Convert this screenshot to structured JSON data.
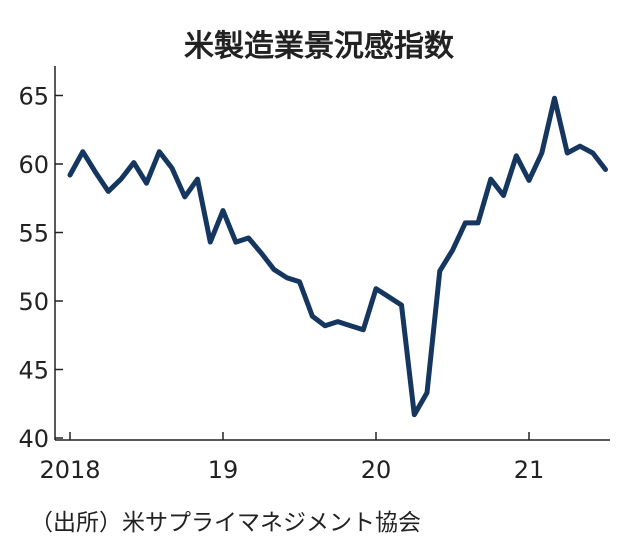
{
  "chart_data": {
    "type": "line",
    "title": "米製造業景況感指数",
    "source": "（出所）米サプライマネジメント協会",
    "ylim": [
      40,
      66
    ],
    "y_ticks": [
      40,
      45,
      50,
      55,
      60,
      65
    ],
    "y_tick_labels": [
      "40",
      "45",
      "50",
      "55",
      "60",
      "65"
    ],
    "x_tick_labels": [
      {
        "month_index": 0,
        "label": "2018"
      },
      {
        "month_index": 12,
        "label": "19"
      },
      {
        "month_index": 24,
        "label": "20"
      },
      {
        "month_index": 36,
        "label": "21"
      }
    ],
    "grid": false,
    "legend": "none",
    "line_color": "#14365f",
    "series": [
      {
        "values": [
          59.2,
          60.9,
          59.4,
          58.0,
          58.9,
          60.1,
          58.6,
          60.9,
          59.7,
          57.6,
          58.9,
          54.3,
          56.6,
          54.3,
          54.6,
          53.5,
          52.3,
          51.7,
          51.4,
          48.9,
          48.2,
          48.5,
          48.2,
          47.9,
          50.9,
          50.3,
          49.7,
          41.7,
          43.3,
          52.2,
          53.7,
          55.7,
          55.7,
          58.9,
          57.7,
          60.6,
          58.8,
          60.8,
          64.8,
          60.8,
          61.3,
          60.8,
          59.6
        ]
      }
    ]
  }
}
